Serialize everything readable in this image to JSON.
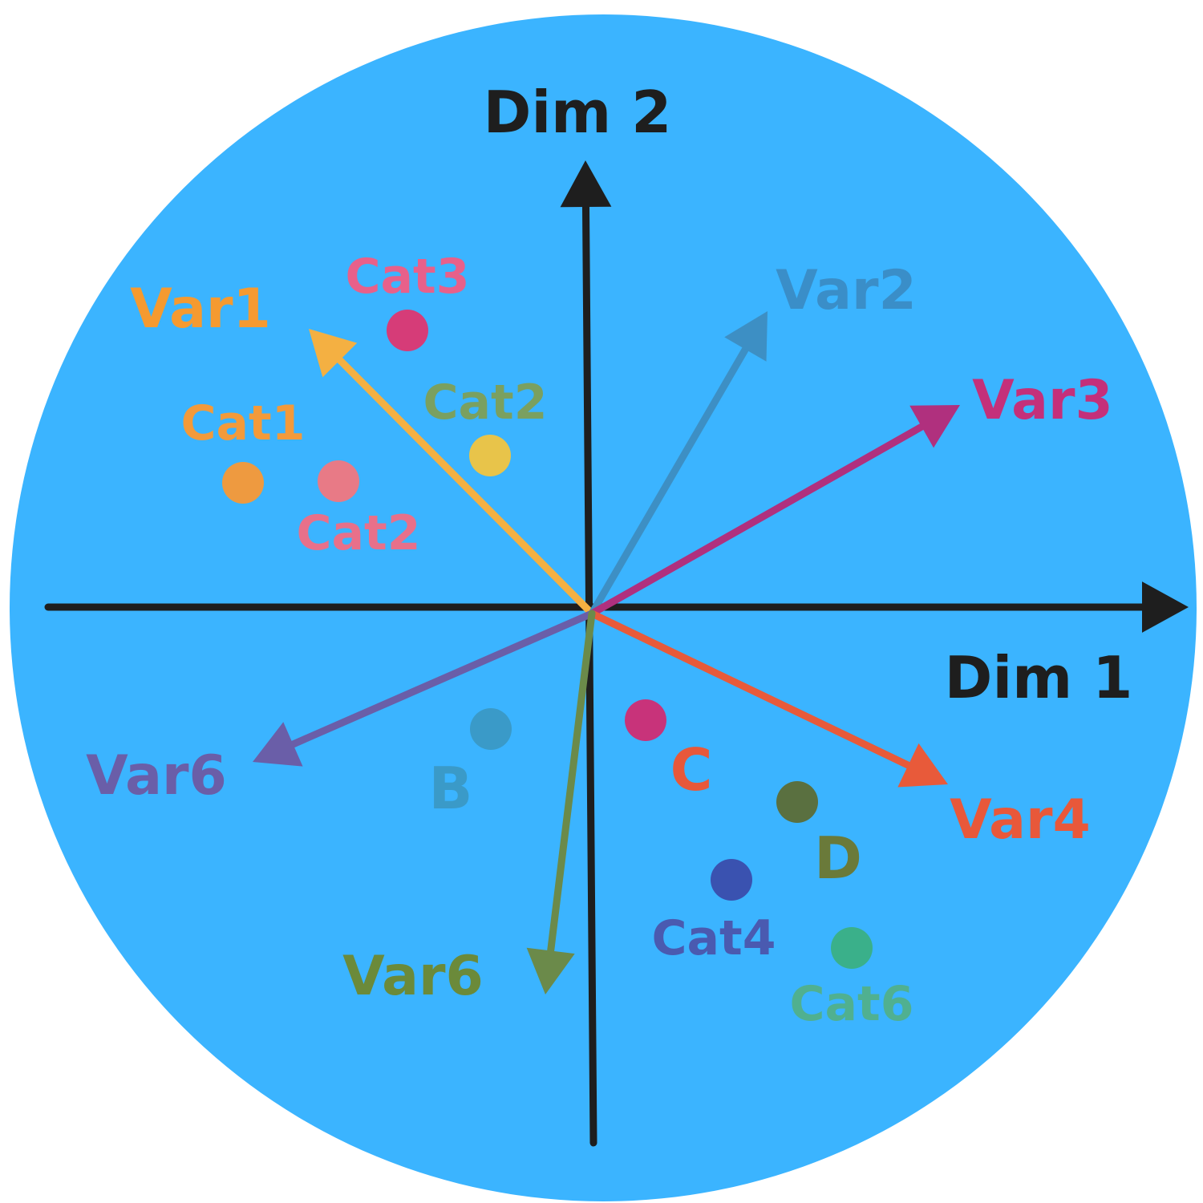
{
  "background_color": "#3bb4ff",
  "axis_color": "#1e1e1e",
  "axes": {
    "x_label": "Dim 1",
    "y_label": "Dim 2"
  },
  "vectors": [
    {
      "label": "Var1",
      "color": "#f4b042",
      "label_color": "#f59a30"
    },
    {
      "label": "Var2",
      "color": "#3d8fc4",
      "label_color": "#3a8ec8"
    },
    {
      "label": "Var3",
      "color": "#b0307e",
      "label_color": "#c4307a"
    },
    {
      "label": "Var4",
      "color": "#e85a3a",
      "label_color": "#e8583a"
    },
    {
      "label": "Var6",
      "color": "#6a5ea8",
      "label_color": "#6a5ea8"
    },
    {
      "label": "Var6",
      "color": "#6b8a4a",
      "label_color": "#6b8a3a"
    }
  ],
  "points": [
    {
      "label": "Cat3",
      "color": "#d63c78",
      "label_color": "#e8608a"
    },
    {
      "label": "Cat1",
      "color": "#ee9a40",
      "label_color": "#f39a3a"
    },
    {
      "label": "Cat2",
      "color": "#e87a86",
      "label_color": "#e8708a"
    },
    {
      "label": "Cat2",
      "color": "#e8c44a",
      "label_color": "#7aa060"
    },
    {
      "label": "B",
      "color": "#3a9ac8",
      "label_color": "#3a9ac8"
    },
    {
      "label": "C",
      "color": "#c8337a",
      "label_color": "#e8583a"
    },
    {
      "label": "D",
      "color": "#5a7040",
      "label_color": "#6a7a3a"
    },
    {
      "label": "Cat4",
      "color": "#3a52b0",
      "label_color": "#4a5ab0"
    },
    {
      "label": "Cat6",
      "color": "#3ab08a",
      "label_color": "#50b090"
    }
  ]
}
